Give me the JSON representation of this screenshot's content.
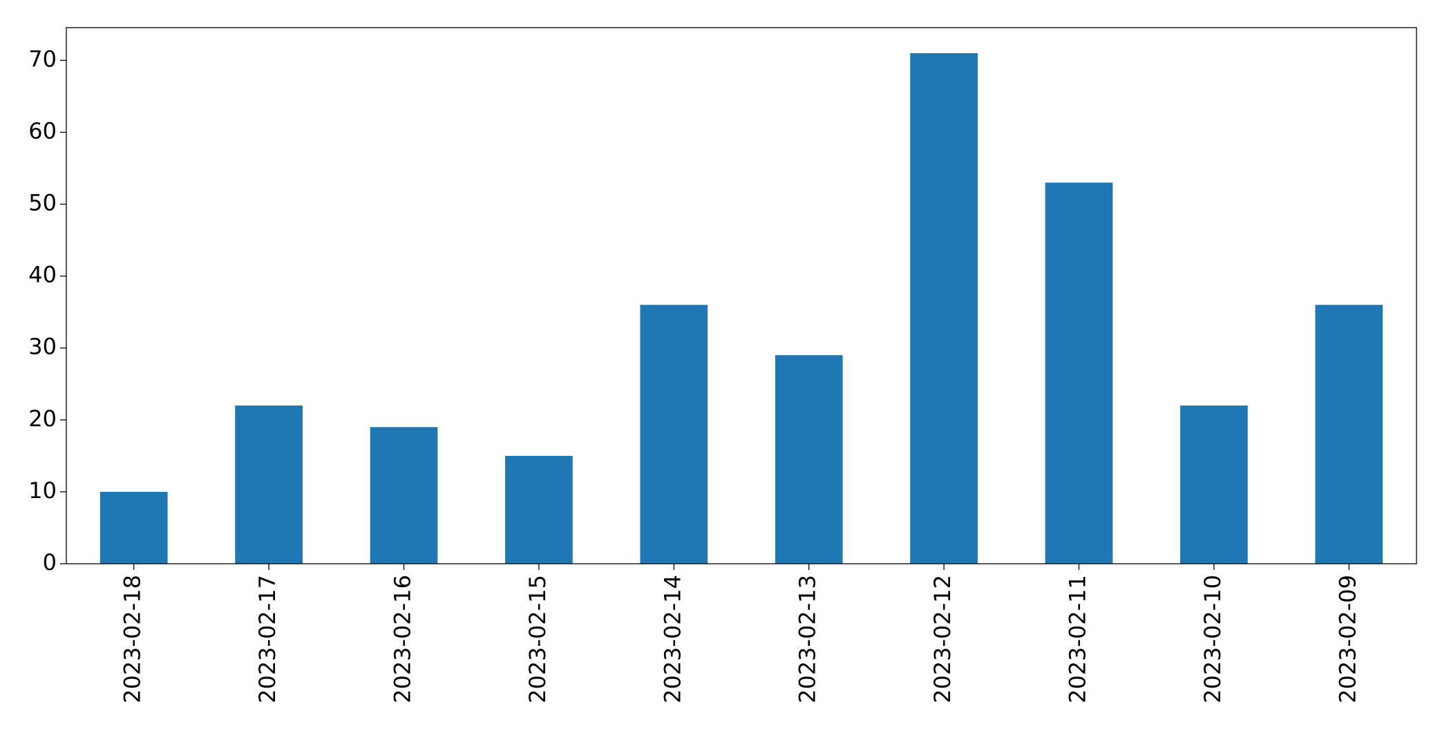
{
  "chart_data": {
    "type": "bar",
    "categories": [
      "2023-02-18",
      "2023-02-17",
      "2023-02-16",
      "2023-02-15",
      "2023-02-14",
      "2023-02-13",
      "2023-02-12",
      "2023-02-11",
      "2023-02-10",
      "2023-02-09"
    ],
    "values": [
      10,
      22,
      19,
      15,
      36,
      29,
      71,
      53,
      22,
      36
    ],
    "color": "#1f77b4",
    "ylim": [
      0,
      74.55
    ],
    "yticks": [
      0,
      10,
      20,
      30,
      40,
      50,
      60,
      70
    ],
    "grid": false
  }
}
